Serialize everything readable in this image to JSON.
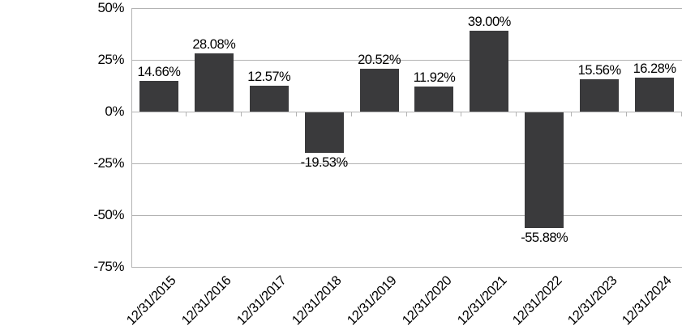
{
  "chart_data": {
    "type": "bar",
    "title": "",
    "xlabel": "",
    "ylabel": "",
    "categories": [
      "12/31/2015",
      "12/31/2016",
      "12/31/2017",
      "12/31/2018",
      "12/31/2019",
      "12/31/2020",
      "12/31/2021",
      "12/31/2022",
      "12/31/2023",
      "12/31/2024"
    ],
    "values": [
      14.66,
      28.08,
      12.57,
      -19.53,
      20.52,
      11.92,
      39.0,
      -55.88,
      15.56,
      16.28
    ],
    "data_labels": [
      "14.66%",
      "28.08%",
      "12.57%",
      "-19.53%",
      "20.52%",
      "11.92%",
      "39.00%",
      "-55.88%",
      "15.56%",
      "16.28%"
    ],
    "y_ticks": [
      {
        "value": 50,
        "label": "50%"
      },
      {
        "value": 25,
        "label": "25%"
      },
      {
        "value": 0,
        "label": "0%"
      },
      {
        "value": -25,
        "label": "-25%"
      },
      {
        "value": -50,
        "label": "-50%"
      },
      {
        "value": -75,
        "label": "-75%"
      }
    ],
    "ylim": [
      -75,
      50
    ],
    "grid": true,
    "legend": "none",
    "colors": {
      "bar": "#3a3a3c",
      "gridline": "#b3b3b3",
      "axis_line": "#b3b3b3",
      "text": "#000000",
      "background": "#ffffff"
    }
  }
}
